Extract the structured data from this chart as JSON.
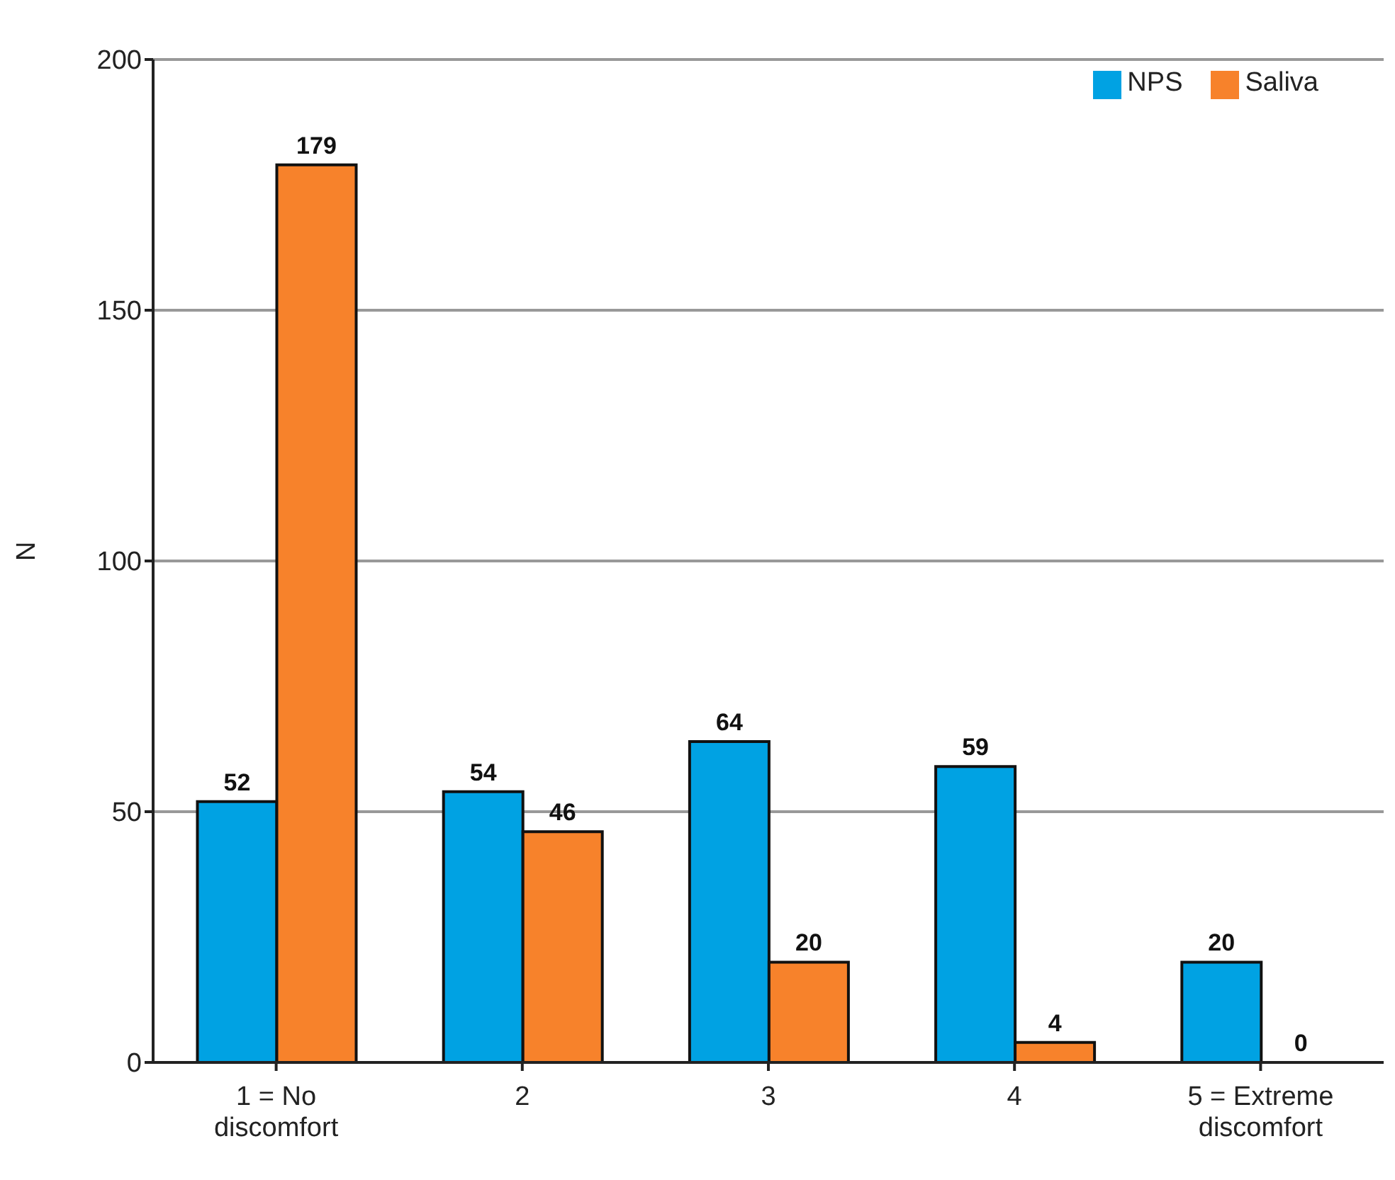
{
  "chart_data": {
    "type": "bar",
    "ylabel": "N",
    "categories": [
      "1 = No discomfort",
      "2",
      "3",
      "4",
      "5 = Extreme discomfort"
    ],
    "series": [
      {
        "name": "NPS",
        "color": "#00a2e3",
        "values": [
          52,
          54,
          64,
          59,
          20
        ]
      },
      {
        "name": "Saliva",
        "color": "#f7822b",
        "values": [
          179,
          46,
          20,
          4,
          0
        ]
      }
    ],
    "ylim": [
      0,
      200
    ],
    "yticks": [
      0,
      50,
      100,
      150,
      200
    ],
    "grid": "y",
    "legend": "top right",
    "data_labels": true
  }
}
